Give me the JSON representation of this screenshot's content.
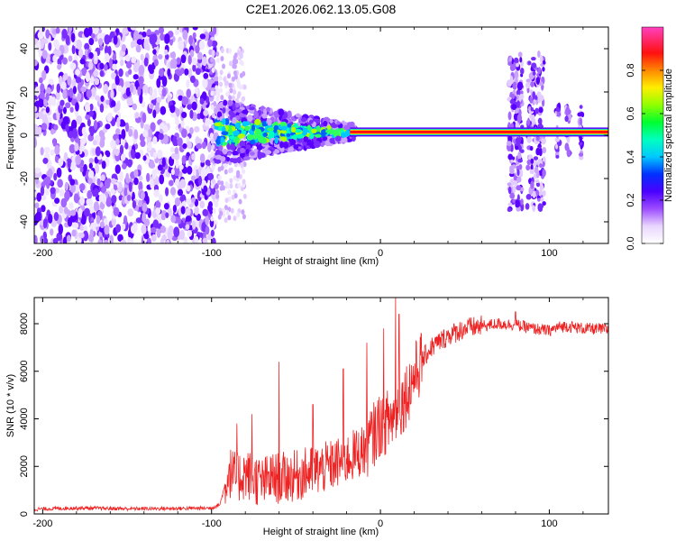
{
  "title": "C2E1.2026.062.13.05.G08",
  "chart_data": [
    {
      "type": "heatmap",
      "xlabel": "Height of straight line (km)",
      "ylabel": "Frequency (Hz)",
      "xlim": [
        -205,
        135
      ],
      "ylim": [
        -50,
        50
      ],
      "xticks": [
        -200,
        -100,
        0,
        100
      ],
      "yticks": [
        -40,
        -20,
        0,
        20,
        40
      ],
      "colorbar": {
        "label": "Normalized spectral amplitude",
        "range": [
          0,
          1
        ],
        "ticks": [
          0.0,
          0.2,
          0.4,
          0.6,
          0.8
        ]
      },
      "features": {
        "noise_region_x": [
          -205,
          -97
        ],
        "tone_frequency_hz": 1.5,
        "strong_tone_x": [
          -18,
          135
        ],
        "scattered_region_x": [
          -97,
          -15
        ],
        "scintillation_bursts_x": [
          [
            76,
            84
          ],
          [
            87,
            97
          ],
          [
            104,
            106
          ],
          [
            110,
            112
          ],
          [
            118,
            120
          ]
        ]
      }
    },
    {
      "type": "line",
      "xlabel": "Height of straight line (km)",
      "ylabel": "SNR (10 * v/v)",
      "xlim": [
        -205,
        135
      ],
      "ylim": [
        0,
        9100
      ],
      "xticks": [
        -200,
        -100,
        0,
        100
      ],
      "yticks": [
        0,
        2000,
        4000,
        6000,
        8000
      ],
      "series": [
        {
          "color": "#ee2222",
          "x": [
            -205,
            -180,
            -150,
            -120,
            -100,
            -95,
            -90,
            -85,
            -80,
            -70,
            -65,
            -60,
            -50,
            -40,
            -30,
            -20,
            -15,
            -10,
            -5,
            0,
            5,
            10,
            15,
            20,
            25,
            30,
            40,
            50,
            60,
            70,
            80,
            90,
            100,
            105,
            110,
            120,
            135
          ],
          "values": [
            200,
            250,
            220,
            230,
            250,
            400,
            1800,
            1500,
            1700,
            1300,
            1500,
            1500,
            1600,
            1800,
            2000,
            2300,
            2500,
            2700,
            3200,
            3800,
            3900,
            4300,
            5000,
            5800,
            6500,
            7000,
            7500,
            7800,
            7900,
            8000,
            7950,
            7800,
            7700,
            7850,
            7900,
            7800,
            7750
          ]
        }
      ],
      "spikes": [
        {
          "x": -85,
          "value": 3800
        },
        {
          "x": -76,
          "value": 4200
        },
        {
          "x": -60,
          "value": 6400
        },
        {
          "x": -40,
          "value": 4600
        },
        {
          "x": -22,
          "value": 6100
        },
        {
          "x": -8,
          "value": 7200
        },
        {
          "x": 2,
          "value": 7800
        },
        {
          "x": 9,
          "value": 9100
        },
        {
          "x": 11,
          "value": 8400
        },
        {
          "x": 80,
          "value": 8500
        }
      ]
    }
  ]
}
